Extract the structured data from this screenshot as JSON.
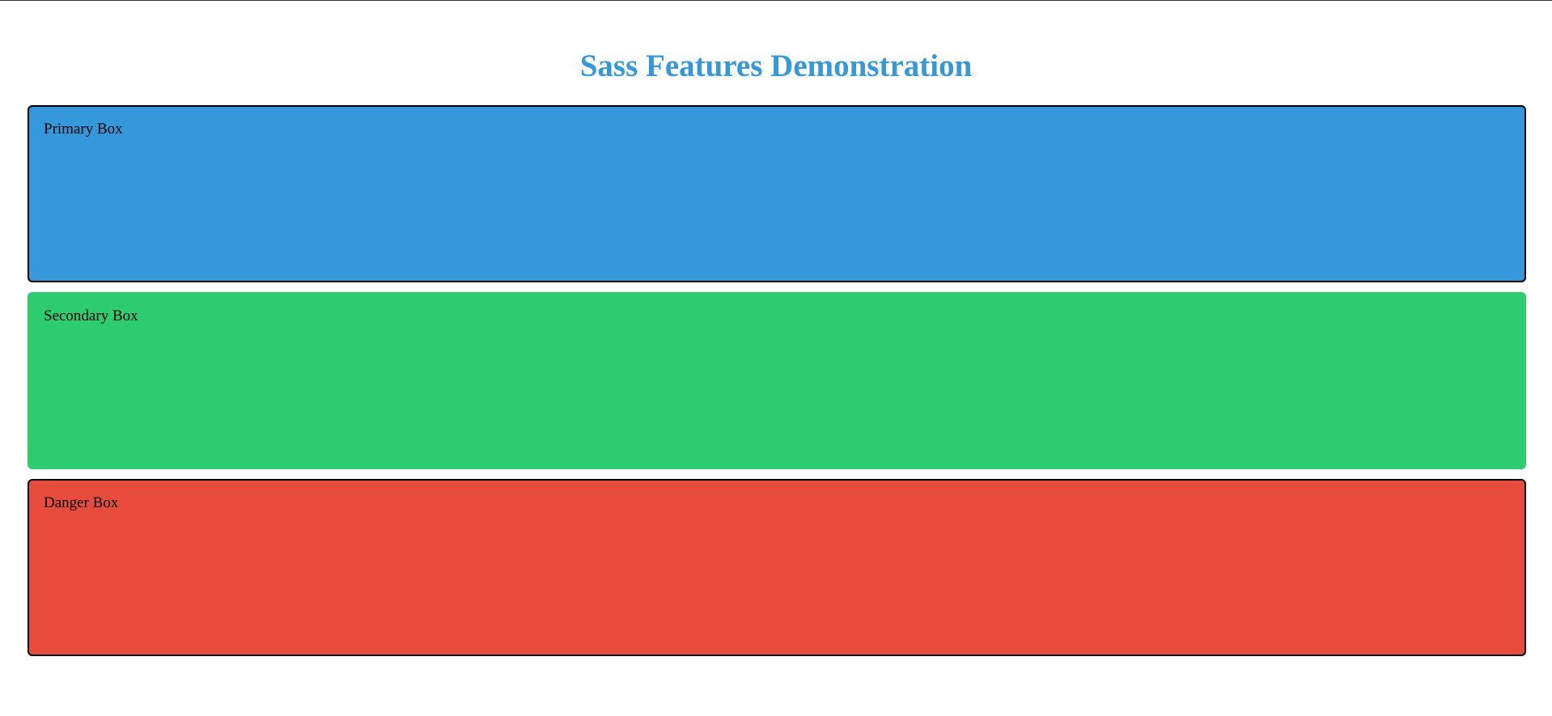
{
  "page": {
    "title": "Sass Features Demonstration",
    "title_color": "#3498db"
  },
  "boxes": [
    {
      "label": "Primary Box",
      "color": "#3498db",
      "bordered": true
    },
    {
      "label": "Secondary Box",
      "color": "#2ecc71",
      "bordered": false
    },
    {
      "label": "Danger Box",
      "color": "#e74c3c",
      "bordered": true
    }
  ]
}
